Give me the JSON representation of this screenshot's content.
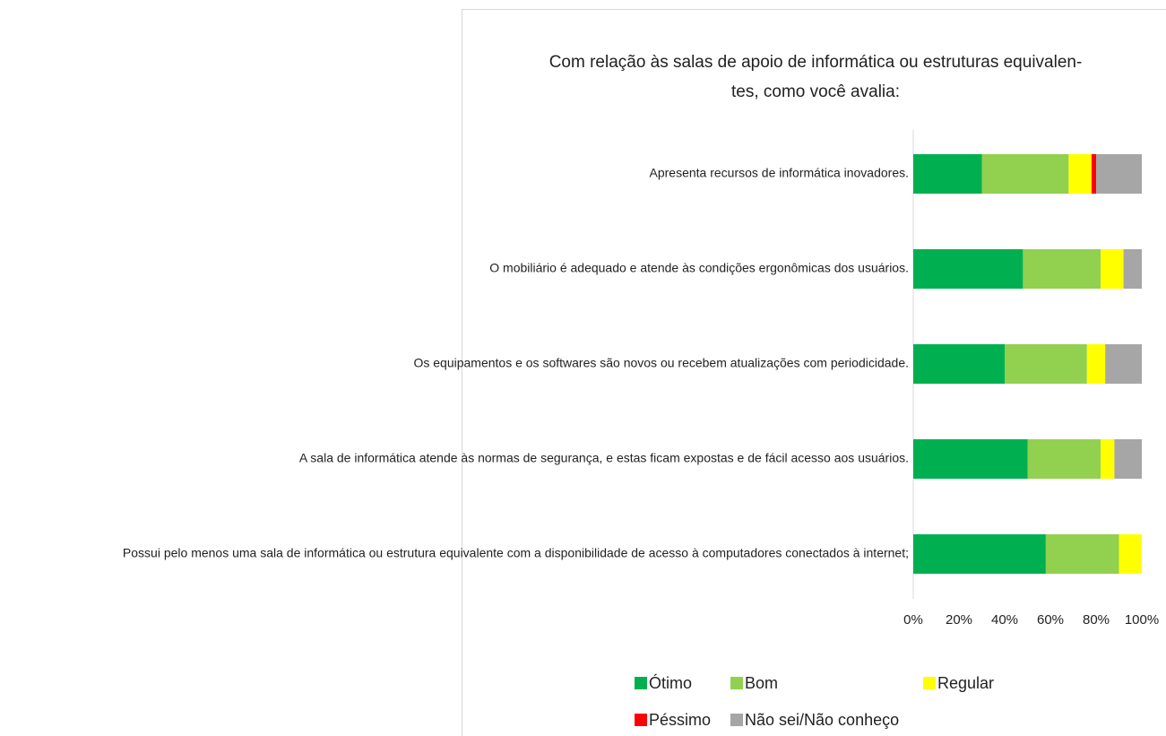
{
  "chart_data": {
    "type": "stacked_barh",
    "title": [
      "Com relação às salas de apoio de informática ou estruturas equivalen-",
      "tes, como você avalia:"
    ],
    "categories": [
      "Apresenta recursos de informática inovadores.",
      "O mobiliário é adequado e atende às condições ergonômicas dos usuários.",
      "Os equipamentos e os softwares são novos ou recebem atualizações com periodicidade.",
      "A sala de informática atende às normas de segurança, e estas ficam expostas e de fácil acesso aos usuários.",
      "Possui pelo menos uma sala de informática ou estrutura equivalente com a disponibilidade de acesso à computadores conectados à internet;"
    ],
    "series": [
      {
        "name": "Ótimo",
        "color": "#00b050",
        "values": [
          30,
          48,
          40,
          50,
          58
        ]
      },
      {
        "name": "Bom",
        "color": "#92d050",
        "values": [
          38,
          34,
          36,
          32,
          32
        ]
      },
      {
        "name": "Regular",
        "color": "#ffff00",
        "values": [
          10,
          10,
          8,
          6,
          10
        ]
      },
      {
        "name": "Péssimo",
        "color": "#ff0000",
        "values": [
          2,
          0,
          0,
          0,
          0
        ]
      },
      {
        "name": "Não sei/Não conheço",
        "color": "#a6a6a6",
        "values": [
          20,
          8,
          16,
          12,
          0
        ]
      }
    ],
    "xlim": [
      0,
      100
    ],
    "xticks": [
      {
        "value": 0,
        "label": "0%"
      },
      {
        "value": 20,
        "label": "20%"
      },
      {
        "value": 40,
        "label": "40%"
      },
      {
        "value": 60,
        "label": "60%"
      },
      {
        "value": 80,
        "label": "80%"
      },
      {
        "value": 100,
        "label": "100%"
      }
    ]
  }
}
